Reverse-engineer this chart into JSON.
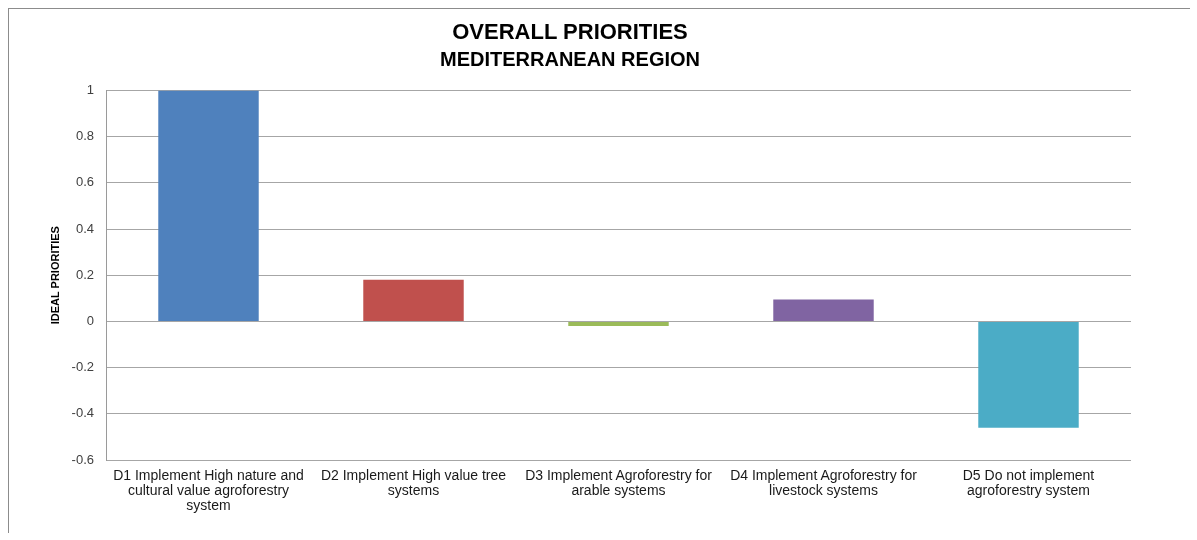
{
  "chart_data": {
    "type": "bar",
    "title": "OVERALL PRIORITIES",
    "subtitle": "MEDITERRANEAN REGION",
    "ylabel": "IDEAL PRIORITIES",
    "categories": [
      "D1 Implement High nature and cultural value agroforestry system",
      "D2 Implement High value tree systems",
      "D3 Implement Agroforestry for arable systems",
      "D4 Implement Agroforestry for livestock systems",
      "D5 Do not implement agroforestry system"
    ],
    "values": [
      1,
      0.18,
      -0.02,
      0.095,
      -0.46
    ],
    "colors": [
      "#4f81bd",
      "#c0504d",
      "#9bbb59",
      "#8064a2",
      "#4bacc6"
    ],
    "ylim": [
      -0.6,
      1
    ],
    "yticks": [
      1,
      0.8,
      0.6,
      0.4,
      0.2,
      0,
      -0.2,
      -0.4,
      -0.6
    ],
    "grid": "y"
  }
}
